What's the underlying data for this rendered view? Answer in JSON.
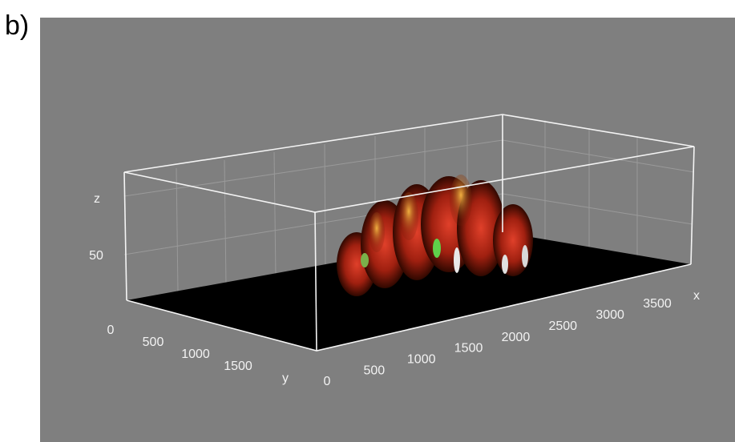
{
  "panel_label": "b)",
  "axes": {
    "x": {
      "label": "x",
      "ticks": [
        0,
        500,
        1000,
        1500,
        2000,
        2500,
        3000,
        3500
      ]
    },
    "y": {
      "label": "y",
      "ticks": [
        0,
        500,
        1000,
        1500
      ]
    },
    "z": {
      "label": "z",
      "ticks": [
        50
      ]
    }
  }
}
